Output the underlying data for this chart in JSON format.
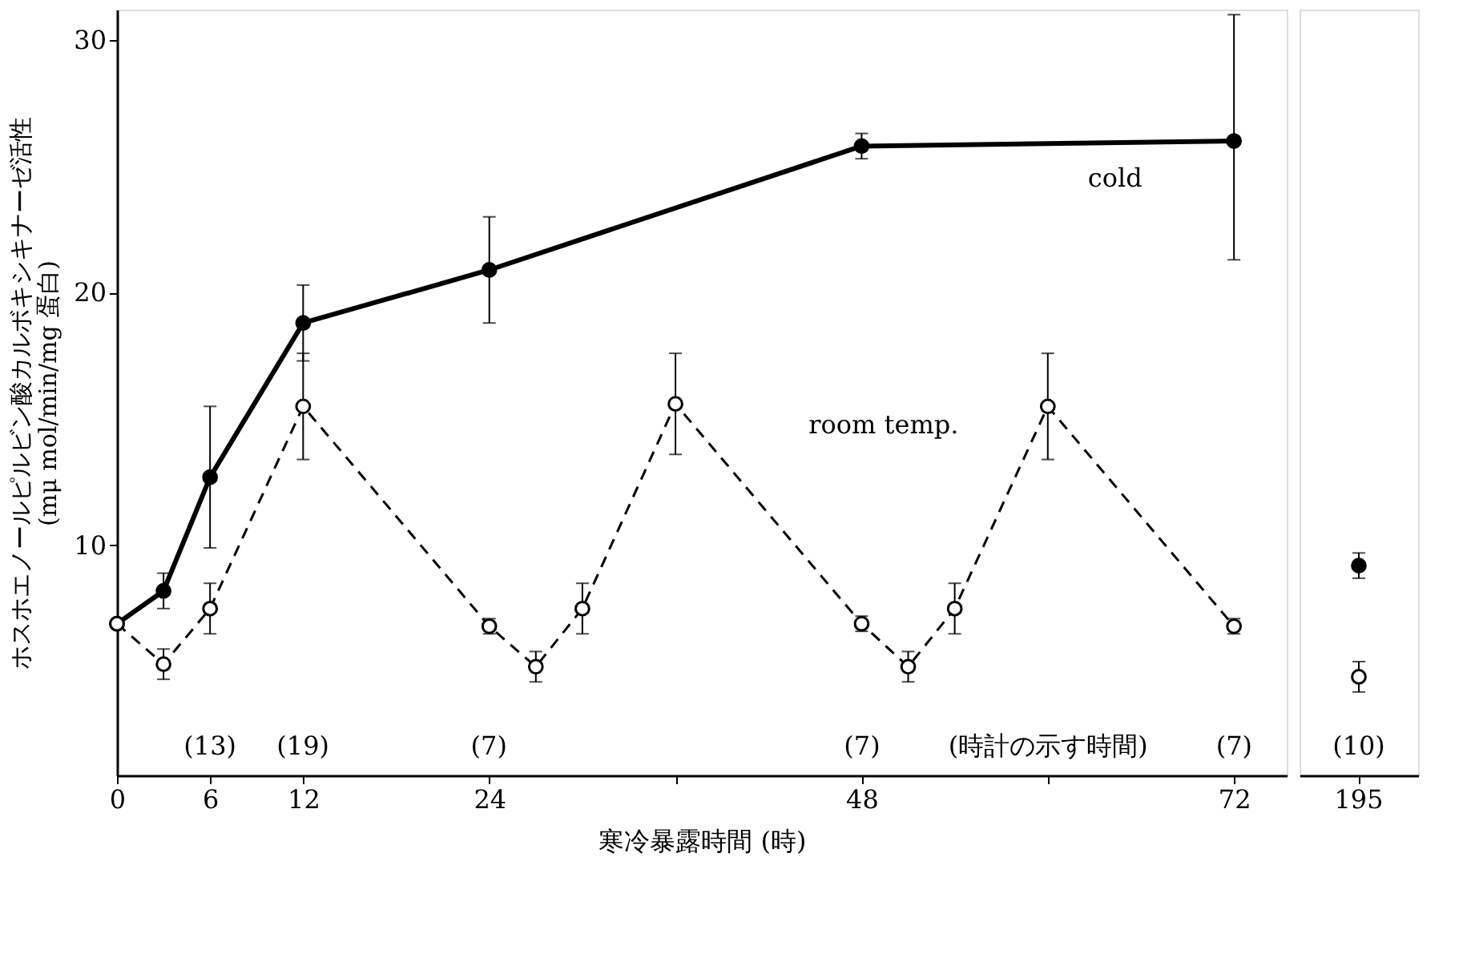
{
  "chart_data": [
    {
      "type": "line",
      "xlabel": "寒冷暴露時間 (時)",
      "ylabel": "ホスホエノールピルビン酸カルボキシキナーゼ活性\n(mμ mol/min/mg 蛋白)",
      "xlim": [
        0,
        75.4
      ],
      "xticks": [
        0,
        6,
        12,
        24,
        {
          "value": 36,
          "label": null
        },
        48,
        {
          "value": 60,
          "label": null
        },
        72
      ],
      "ylim": [
        0.9,
        31.2
      ],
      "yticks": [
        10,
        20,
        30
      ],
      "marker": "circle",
      "series": [
        {
          "name": "cold",
          "color": "#000000",
          "line_style": "solid",
          "x": [
            0,
            3,
            6,
            12,
            24,
            48,
            72
          ],
          "values": [
            6.9,
            8.2,
            12.7,
            18.8,
            20.9,
            25.8,
            26.0
          ],
          "errors": [
            null,
            0.7,
            2.8,
            1.5,
            2.1,
            0.5,
            [
              21.3,
              31.0
            ]
          ]
        },
        {
          "name": "room temp.",
          "color": "#000000",
          "line_style": "dashed",
          "x": [
            0,
            3,
            6,
            12,
            24,
            27,
            30,
            36,
            48,
            51,
            54,
            60,
            72
          ],
          "values": [
            6.9,
            5.3,
            7.5,
            15.5,
            6.8,
            5.2,
            7.5,
            15.6,
            6.9,
            5.2,
            7.5,
            15.5,
            6.8
          ],
          "errors": [
            null,
            0.6,
            1.0,
            2.1,
            0.3,
            0.6,
            1.0,
            2.0,
            0.3,
            0.6,
            1.0,
            2.1,
            0.3
          ]
        }
      ],
      "annotations": [
        "(13)",
        "(19)",
        "(7)",
        "(7)",
        "(時計の示す時間)",
        "(7)"
      ]
    },
    {
      "type": "line",
      "categories": [
        "195"
      ],
      "ylim": [
        0.9,
        31.2
      ],
      "tick_labels": "x",
      "marker": "circle",
      "series": [
        {
          "color": "#000000",
          "line_style": "solid",
          "values": [
            9.2
          ],
          "errors": [
            0.5
          ]
        },
        {
          "color": "#000000",
          "line_style": "dashed",
          "values": [
            4.8
          ],
          "errors": [
            0.6
          ]
        }
      ],
      "annotations": [
        "(10)"
      ]
    }
  ]
}
